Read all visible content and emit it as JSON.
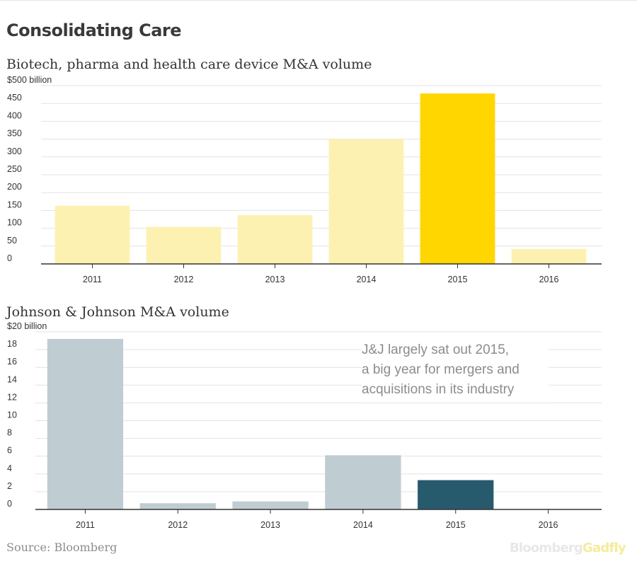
{
  "title": "Consolidating Care",
  "source": "Source: Bloomberg",
  "brand": {
    "part1": "Bloomberg",
    "part2": "Gadfly"
  },
  "colors": {
    "chart1_base": "#fdf1b2",
    "chart1_highlight": "#ffd600",
    "chart2_base": "#bfccd2",
    "chart2_highlight": "#285a6e",
    "grid": "#e3e3e3",
    "axis": "#333333"
  },
  "chart_data": [
    {
      "type": "bar",
      "title": "Biotech, pharma and health care device M&A volume",
      "categories": [
        "2011",
        "2012",
        "2013",
        "2014",
        "2015",
        "2016"
      ],
      "values": [
        163,
        104,
        137,
        350,
        478,
        42
      ],
      "highlight_index": 4,
      "ylim": [
        0,
        500
      ],
      "yticks": [
        0,
        50,
        100,
        150,
        200,
        250,
        300,
        350,
        400,
        450,
        500
      ],
      "ytick_labels": [
        "0",
        "50",
        "100",
        "150",
        "200",
        "250",
        "300",
        "350",
        "400",
        "450",
        "$500 billion"
      ],
      "grid": true
    },
    {
      "type": "bar",
      "title": "Johnson & Johnson M&A volume",
      "categories": [
        "2011",
        "2012",
        "2013",
        "2014",
        "2015",
        "2016"
      ],
      "values": [
        19.2,
        0.7,
        0.9,
        6.1,
        3.3,
        0
      ],
      "highlight_index": 4,
      "ylim": [
        0,
        20
      ],
      "yticks": [
        0,
        2,
        4,
        6,
        8,
        10,
        12,
        14,
        16,
        18,
        20
      ],
      "ytick_labels": [
        "0",
        "2",
        "4",
        "6",
        "8",
        "10",
        "12",
        "14",
        "16",
        "18",
        "$20 billion"
      ],
      "grid": true,
      "annotation": [
        "J&J largely sat out  2015,",
        "a big year for mergers and",
        "acquisitions in its industry"
      ]
    }
  ]
}
